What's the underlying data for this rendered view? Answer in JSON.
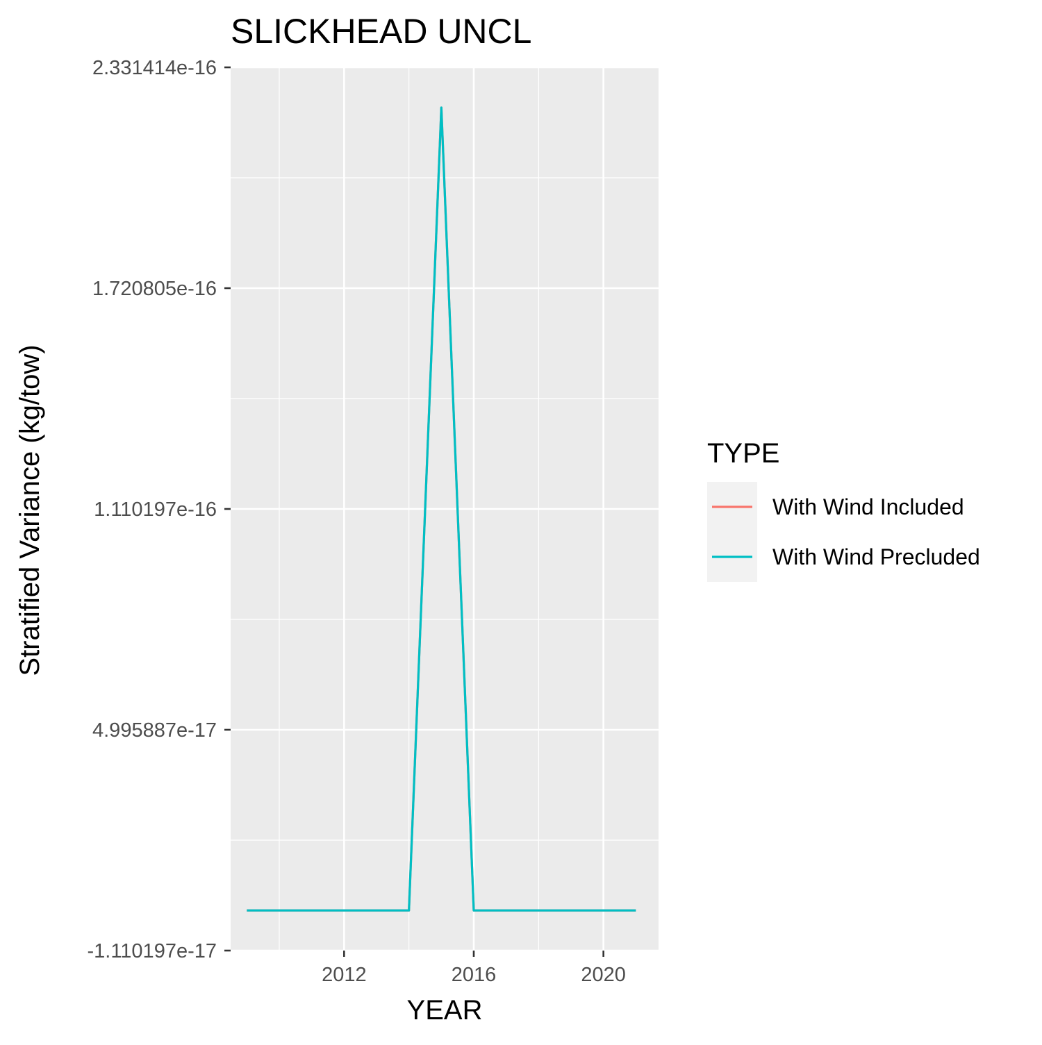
{
  "chart_data": {
    "type": "line",
    "title": "SLICKHEAD UNCL",
    "xlabel": "YEAR",
    "ylabel": "Stratified Variance (kg/tow)",
    "xlim": [
      2008.5,
      2021.7
    ],
    "ylim": [
      -1.110197e-17,
      2.331414e-16
    ],
    "x_ticks": [
      2012,
      2016,
      2020
    ],
    "x_tick_labels": [
      "2012",
      "2016",
      "2020"
    ],
    "y_ticks": [
      -1.110197e-17,
      4.995887e-17,
      1.110197e-16,
      1.720805e-16,
      2.331414e-16
    ],
    "y_tick_labels": [
      "-1.110197e-17",
      "4.995887e-17",
      "1.110197e-16",
      "1.720805e-16",
      "2.331414e-16"
    ],
    "grid": true,
    "legend": {
      "title": "TYPE",
      "placement": "right"
    },
    "x": [
      2009,
      2010,
      2011,
      2012,
      2013,
      2014,
      2015,
      2016,
      2017,
      2018,
      2019,
      2020,
      2021
    ],
    "series": [
      {
        "name": "With Wind Included",
        "color": "#F8766D",
        "values": [
          0,
          0,
          0,
          0,
          0,
          0,
          2.22e-16,
          0,
          0,
          0,
          0,
          0,
          0
        ]
      },
      {
        "name": "With Wind Precluded",
        "color": "#00BFC4",
        "values": [
          0,
          0,
          0,
          0,
          0,
          0,
          2.22e-16,
          0,
          0,
          0,
          0,
          0,
          0
        ]
      }
    ]
  }
}
